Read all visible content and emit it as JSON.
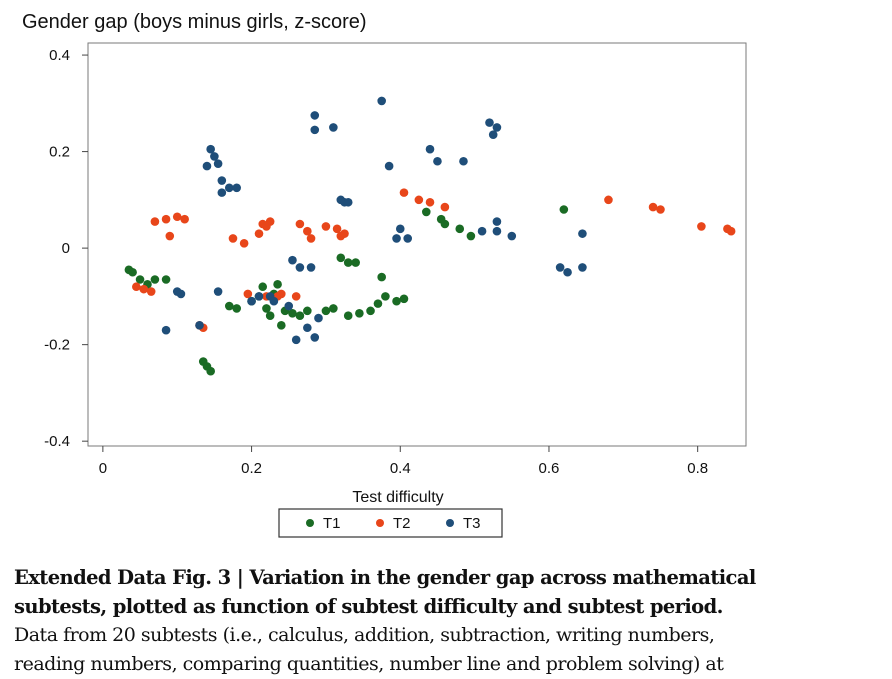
{
  "chart_data": {
    "type": "scatter",
    "title": "Gender gap (boys minus girls, z-score)",
    "xlabel": "Test difficulty",
    "ylabel": "",
    "xlim": [
      -0.02,
      0.865
    ],
    "ylim": [
      -0.41,
      0.425
    ],
    "xticks": [
      0,
      0.2,
      0.4,
      0.6,
      0.8
    ],
    "xtick_labels": [
      "0",
      "0.2",
      "0.4",
      "0.6",
      "0.8"
    ],
    "yticks": [
      -0.4,
      -0.2,
      0,
      0.2,
      0.4
    ],
    "ytick_labels": [
      "-0.4",
      "-0.2",
      "0",
      "0.2",
      "0.4"
    ],
    "grid": false,
    "legend_position": "bottom",
    "series": [
      {
        "name": "T1",
        "color": "#1a6b24",
        "points": [
          [
            0.035,
            -0.045
          ],
          [
            0.04,
            -0.05
          ],
          [
            0.05,
            -0.065
          ],
          [
            0.06,
            -0.075
          ],
          [
            0.07,
            -0.065
          ],
          [
            0.085,
            -0.065
          ],
          [
            0.135,
            -0.235
          ],
          [
            0.14,
            -0.245
          ],
          [
            0.145,
            -0.255
          ],
          [
            0.17,
            -0.12
          ],
          [
            0.18,
            -0.125
          ],
          [
            0.2,
            -0.11
          ],
          [
            0.21,
            -0.1
          ],
          [
            0.215,
            -0.08
          ],
          [
            0.22,
            -0.125
          ],
          [
            0.225,
            -0.14
          ],
          [
            0.23,
            -0.095
          ],
          [
            0.235,
            -0.075
          ],
          [
            0.24,
            -0.16
          ],
          [
            0.245,
            -0.13
          ],
          [
            0.255,
            -0.135
          ],
          [
            0.265,
            -0.14
          ],
          [
            0.275,
            -0.13
          ],
          [
            0.3,
            -0.13
          ],
          [
            0.31,
            -0.125
          ],
          [
            0.32,
            -0.02
          ],
          [
            0.33,
            -0.03
          ],
          [
            0.34,
            -0.03
          ],
          [
            0.33,
            -0.14
          ],
          [
            0.345,
            -0.135
          ],
          [
            0.36,
            -0.13
          ],
          [
            0.37,
            -0.115
          ],
          [
            0.375,
            -0.06
          ],
          [
            0.38,
            -0.1
          ],
          [
            0.395,
            -0.11
          ],
          [
            0.405,
            -0.105
          ],
          [
            0.435,
            0.075
          ],
          [
            0.455,
            0.06
          ],
          [
            0.46,
            0.05
          ],
          [
            0.48,
            0.04
          ],
          [
            0.495,
            0.025
          ],
          [
            0.62,
            0.08
          ]
        ]
      },
      {
        "name": "T2",
        "color": "#e8461a",
        "points": [
          [
            0.045,
            -0.08
          ],
          [
            0.055,
            -0.085
          ],
          [
            0.065,
            -0.09
          ],
          [
            0.07,
            0.055
          ],
          [
            0.085,
            0.06
          ],
          [
            0.09,
            0.025
          ],
          [
            0.1,
            0.065
          ],
          [
            0.11,
            0.06
          ],
          [
            0.13,
            -0.16
          ],
          [
            0.135,
            -0.165
          ],
          [
            0.175,
            0.02
          ],
          [
            0.19,
            0.01
          ],
          [
            0.195,
            -0.095
          ],
          [
            0.21,
            0.03
          ],
          [
            0.215,
            0.05
          ],
          [
            0.22,
            0.045
          ],
          [
            0.225,
            0.055
          ],
          [
            0.22,
            -0.1
          ],
          [
            0.235,
            -0.1
          ],
          [
            0.24,
            -0.095
          ],
          [
            0.26,
            -0.1
          ],
          [
            0.265,
            0.05
          ],
          [
            0.275,
            0.035
          ],
          [
            0.28,
            0.02
          ],
          [
            0.3,
            0.045
          ],
          [
            0.315,
            0.04
          ],
          [
            0.32,
            0.025
          ],
          [
            0.325,
            0.03
          ],
          [
            0.405,
            0.115
          ],
          [
            0.425,
            0.1
          ],
          [
            0.44,
            0.095
          ],
          [
            0.46,
            0.085
          ],
          [
            0.68,
            0.1
          ],
          [
            0.74,
            0.085
          ],
          [
            0.75,
            0.08
          ],
          [
            0.805,
            0.045
          ],
          [
            0.84,
            0.04
          ],
          [
            0.845,
            0.035
          ]
        ]
      },
      {
        "name": "T3",
        "color": "#1f4e79",
        "points": [
          [
            0.085,
            -0.17
          ],
          [
            0.1,
            -0.09
          ],
          [
            0.105,
            -0.095
          ],
          [
            0.13,
            -0.16
          ],
          [
            0.14,
            0.17
          ],
          [
            0.145,
            0.205
          ],
          [
            0.15,
            0.19
          ],
          [
            0.155,
            0.175
          ],
          [
            0.16,
            0.14
          ],
          [
            0.16,
            0.115
          ],
          [
            0.155,
            -0.09
          ],
          [
            0.17,
            0.125
          ],
          [
            0.18,
            0.125
          ],
          [
            0.2,
            -0.11
          ],
          [
            0.21,
            -0.1
          ],
          [
            0.225,
            -0.1
          ],
          [
            0.23,
            -0.11
          ],
          [
            0.25,
            -0.12
          ],
          [
            0.26,
            -0.19
          ],
          [
            0.255,
            -0.025
          ],
          [
            0.265,
            -0.04
          ],
          [
            0.275,
            -0.165
          ],
          [
            0.285,
            -0.185
          ],
          [
            0.28,
            -0.04
          ],
          [
            0.285,
            0.275
          ],
          [
            0.285,
            0.245
          ],
          [
            0.29,
            -0.145
          ],
          [
            0.31,
            0.25
          ],
          [
            0.32,
            0.1
          ],
          [
            0.325,
            0.095
          ],
          [
            0.33,
            0.095
          ],
          [
            0.375,
            0.305
          ],
          [
            0.385,
            0.17
          ],
          [
            0.395,
            0.02
          ],
          [
            0.4,
            0.04
          ],
          [
            0.41,
            0.02
          ],
          [
            0.44,
            0.205
          ],
          [
            0.45,
            0.18
          ],
          [
            0.485,
            0.18
          ],
          [
            0.51,
            0.035
          ],
          [
            0.52,
            0.26
          ],
          [
            0.525,
            0.235
          ],
          [
            0.53,
            0.25
          ],
          [
            0.53,
            0.055
          ],
          [
            0.53,
            0.035
          ],
          [
            0.55,
            0.025
          ],
          [
            0.615,
            -0.04
          ],
          [
            0.625,
            -0.05
          ],
          [
            0.645,
            -0.04
          ],
          [
            0.645,
            0.03
          ]
        ]
      }
    ]
  },
  "caption": {
    "title_line1": "Extended Data Fig. 3 | Variation in the gender gap across mathematical",
    "title_line2": "subtests, plotted as function of subtest difficulty and subtest period.",
    "body_line1": "Data from 20 subtests (i.e., calculus, addition, subtraction, writing numbers,",
    "body_line2": "reading numbers, comparing quantities, number line and problem solving) at"
  }
}
